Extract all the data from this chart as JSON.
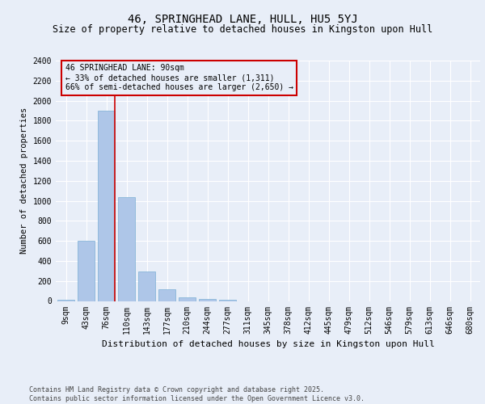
{
  "title": "46, SPRINGHEAD LANE, HULL, HU5 5YJ",
  "subtitle": "Size of property relative to detached houses in Kingston upon Hull",
  "xlabel": "Distribution of detached houses by size in Kingston upon Hull",
  "ylabel": "Number of detached properties",
  "categories": [
    "9sqm",
    "43sqm",
    "76sqm",
    "110sqm",
    "143sqm",
    "177sqm",
    "210sqm",
    "244sqm",
    "277sqm",
    "311sqm",
    "345sqm",
    "378sqm",
    "412sqm",
    "445sqm",
    "479sqm",
    "512sqm",
    "546sqm",
    "579sqm",
    "613sqm",
    "646sqm",
    "680sqm"
  ],
  "values": [
    10,
    600,
    1900,
    1040,
    295,
    120,
    40,
    20,
    10,
    0,
    0,
    0,
    0,
    0,
    0,
    0,
    0,
    0,
    0,
    0,
    0
  ],
  "bar_color": "#aec6e8",
  "bar_edge_color": "#7aafd4",
  "vline_color": "#cc0000",
  "vline_x_index": 2.41,
  "annotation_text": "46 SPRINGHEAD LANE: 90sqm\n← 33% of detached houses are smaller (1,311)\n66% of semi-detached houses are larger (2,650) →",
  "annotation_box_color": "#cc0000",
  "ylim": [
    0,
    2400
  ],
  "yticks": [
    0,
    200,
    400,
    600,
    800,
    1000,
    1200,
    1400,
    1600,
    1800,
    2000,
    2200,
    2400
  ],
  "background_color": "#e8eef8",
  "footer_text": "Contains HM Land Registry data © Crown copyright and database right 2025.\nContains public sector information licensed under the Open Government Licence v3.0.",
  "title_fontsize": 10,
  "subtitle_fontsize": 8.5,
  "xlabel_fontsize": 8,
  "ylabel_fontsize": 7.5,
  "tick_fontsize": 7,
  "annotation_fontsize": 7,
  "footer_fontsize": 6
}
